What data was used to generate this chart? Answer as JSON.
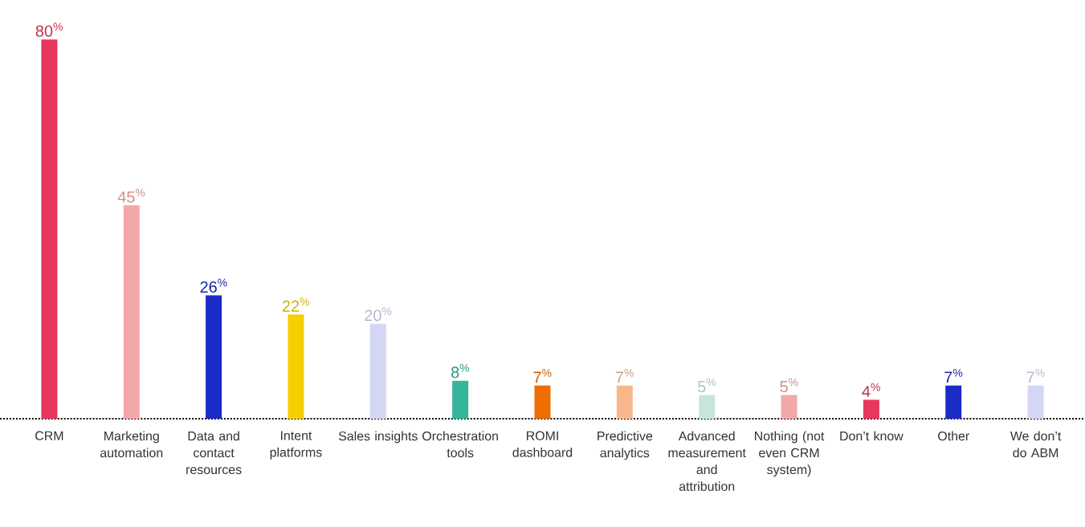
{
  "chart_data": {
    "type": "bar",
    "categories": [
      "CRM",
      "Marketing automation",
      "Data and contact resources",
      "Intent platforms",
      "Sales insights",
      "Orchestration tools",
      "ROMI dashboard",
      "Predictive analytics",
      "Advanced measurement and attribution",
      "Nothing (not even CRM system)",
      "Don’t know",
      "Other",
      "We don’t do ABM"
    ],
    "values": [
      80,
      45,
      26,
      22,
      20,
      8,
      7,
      7,
      5,
      5,
      4,
      7,
      7
    ],
    "colors": [
      "#e8365d",
      "#f4a7a8",
      "#1b2bc8",
      "#f5cf00",
      "#d4d6f5",
      "#35b59b",
      "#ef6c00",
      "#f7b98b",
      "#c5e6dc",
      "#f4a7a8",
      "#e8365d",
      "#1b2bc8",
      "#d4d6f5"
    ],
    "value_labels": [
      "80$^{%}$",
      "45$^{%}$",
      "26$^{%}$",
      "22$^{%}$",
      "20$^{%}$",
      "8$^{%}$",
      "7$^{%}$",
      "7$^{%}$",
      "5$^{%}$",
      "5$^{%}$",
      "4$^{%}$",
      "7$^{%}$",
      "7$^{%}$"
    ]
  }
}
